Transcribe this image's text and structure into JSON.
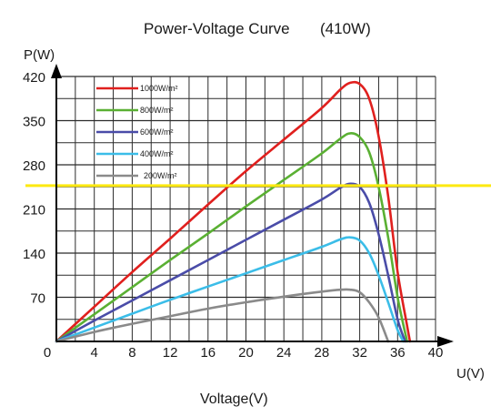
{
  "chart_data": {
    "type": "line",
    "title": "Power-Voltage  Curve",
    "subtitle": "(410W)",
    "xlabel": "Voltage(V)",
    "ylabel": "P(W)",
    "x_axis_end_label": "U(V)",
    "xlim": [
      0,
      40
    ],
    "ylim": [
      0,
      420
    ],
    "x_ticks": [
      "0",
      "4",
      "8",
      "12",
      "16",
      "20",
      "24",
      "28",
      "32",
      "36",
      "40"
    ],
    "y_ticks": [
      "70",
      "140",
      "210",
      "280",
      "350",
      "420"
    ],
    "grid": true,
    "legend_position": "top-left",
    "series": [
      {
        "name": "1000W/m²",
        "color": "#e0201e",
        "x": [
          0,
          4,
          8,
          12,
          16,
          20,
          24,
          28,
          30,
          31,
          32,
          33,
          34,
          35,
          36,
          37,
          37.3
        ],
        "y": [
          0,
          55,
          110,
          163,
          217,
          270,
          320,
          370,
          400,
          410,
          408,
          385,
          325,
          230,
          110,
          25,
          0
        ]
      },
      {
        "name": "800W/m²",
        "color": "#5ab033",
        "x": [
          0,
          4,
          8,
          12,
          16,
          20,
          24,
          28,
          30,
          31,
          32,
          33,
          34,
          35,
          36,
          37
        ],
        "y": [
          0,
          43,
          86,
          129,
          171,
          214,
          256,
          298,
          322,
          330,
          324,
          300,
          245,
          165,
          70,
          0
        ]
      },
      {
        "name": "600W/m²",
        "color": "#4a4ca8",
        "x": [
          0,
          4,
          8,
          12,
          16,
          20,
          24,
          28,
          30,
          31,
          32,
          33,
          34,
          35,
          36,
          36.8
        ],
        "y": [
          0,
          33,
          65,
          97,
          129,
          161,
          193,
          225,
          244,
          250,
          245,
          220,
          170,
          105,
          35,
          0
        ]
      },
      {
        "name": "400W/m²",
        "color": "#3bbde8",
        "x": [
          0,
          4,
          8,
          12,
          16,
          20,
          24,
          28,
          30,
          31,
          32,
          33,
          34,
          35,
          36,
          36.6
        ],
        "y": [
          0,
          22,
          44,
          66,
          87,
          108,
          129,
          150,
          162,
          165,
          160,
          140,
          105,
          62,
          18,
          0
        ]
      },
      {
        "name": "200W/m²",
        "color": "#8a8a8a",
        "x": [
          0,
          4,
          8,
          12,
          16,
          20,
          24,
          28,
          30,
          31,
          32,
          33,
          34,
          35
        ],
        "y": [
          0,
          15,
          28,
          40,
          52,
          62,
          71,
          79,
          82,
          82,
          78,
          62,
          38,
          0
        ]
      }
    ],
    "annotation": {
      "type": "horizontal-line",
      "y": 247,
      "color": "#fde910"
    }
  }
}
